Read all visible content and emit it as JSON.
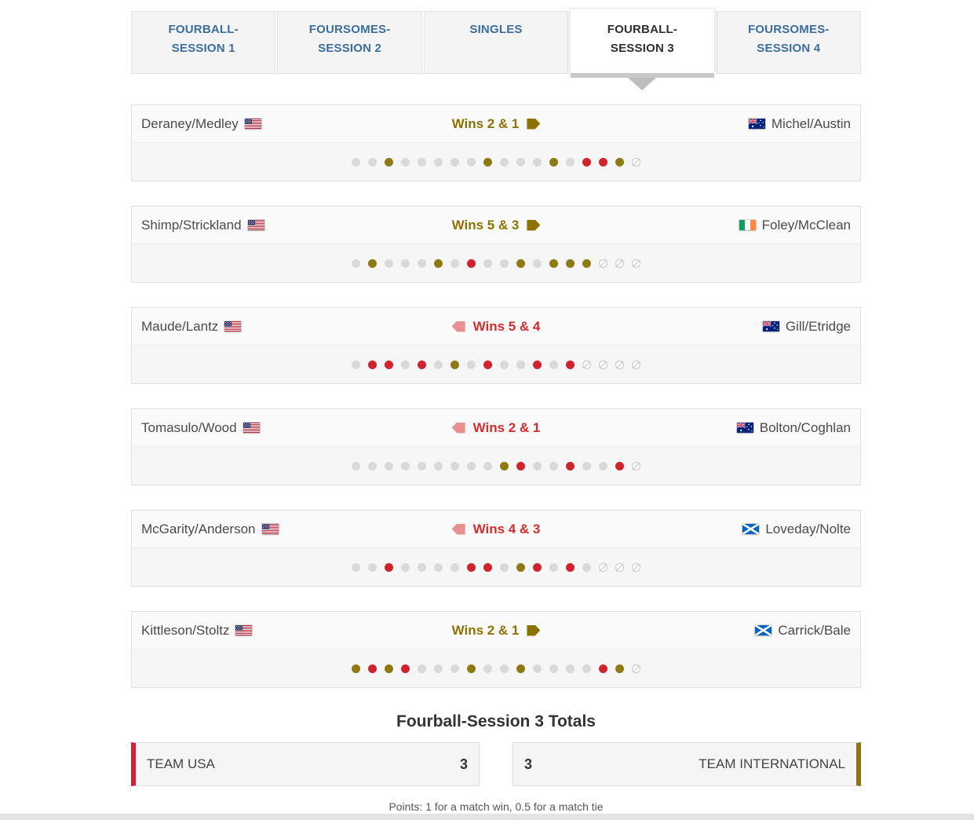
{
  "colors": {
    "usa": "#d0232e",
    "usa_text": "#d22c2c",
    "usa_arrow": "#ea9090",
    "international": "#8e7a12",
    "international_text": "#8c7200",
    "tie": "#d9d9d9"
  },
  "tabs": [
    {
      "label": "FOURBALL-SESSION 1",
      "active": false
    },
    {
      "label": "FOURSOMES-SESSION 2",
      "active": false
    },
    {
      "label": "SINGLES",
      "active": false
    },
    {
      "label": "FOURBALL-SESSION 3",
      "active": true
    },
    {
      "label": "FOURSOMES-SESSION 4",
      "active": false
    }
  ],
  "hole_legend": {
    "t": "tie",
    "u": "usa-won-hole",
    "i": "international-won-hole",
    "n": "not-played"
  },
  "matches": [
    {
      "left": {
        "name": "Deraney/Medley",
        "flag": "usa"
      },
      "right": {
        "name": "Michel/Austin",
        "flag": "australia"
      },
      "result": {
        "text": "Wins 2 & 1",
        "winner": "international"
      },
      "holes": "ttitttttitttituuin"
    },
    {
      "left": {
        "name": "Shimp/Strickland",
        "flag": "usa"
      },
      "right": {
        "name": "Foley/McClean",
        "flag": "ireland"
      },
      "result": {
        "text": "Wins 5 & 3",
        "winner": "international"
      },
      "holes": "titttituttitiiinnn"
    },
    {
      "left": {
        "name": "Maude/Lantz",
        "flag": "usa"
      },
      "right": {
        "name": "Gill/Etridge",
        "flag": "australia"
      },
      "result": {
        "text": "Wins 5 & 4",
        "winner": "usa"
      },
      "holes": "tuututituttutunnnn"
    },
    {
      "left": {
        "name": "Tomasulo/Wood",
        "flag": "usa"
      },
      "right": {
        "name": "Bolton/Coghlan",
        "flag": "australia"
      },
      "result": {
        "text": "Wins 2 & 1",
        "winner": "usa"
      },
      "holes": "tttttttttiuttuttun"
    },
    {
      "left": {
        "name": "McGarity/Anderson",
        "flag": "usa"
      },
      "right": {
        "name": "Loveday/Nolte",
        "flag": "scotland"
      },
      "result": {
        "text": "Wins 4 & 3",
        "winner": "usa"
      },
      "holes": "ttuttttuutiututnnn"
    },
    {
      "left": {
        "name": "Kittleson/Stoltz",
        "flag": "usa"
      },
      "right": {
        "name": "Carrick/Bale",
        "flag": "scotland"
      },
      "result": {
        "text": "Wins 2 & 1",
        "winner": "international"
      },
      "holes": "iuiutttittittttuin"
    }
  ],
  "totals": {
    "title": "Fourball-Session 3 Totals",
    "usa": {
      "label": "TEAM USA",
      "score": "3"
    },
    "international": {
      "label": "TEAM INTERNATIONAL",
      "score": "3"
    },
    "note": "Points: 1 for a match win, 0.5 for a match tie"
  }
}
